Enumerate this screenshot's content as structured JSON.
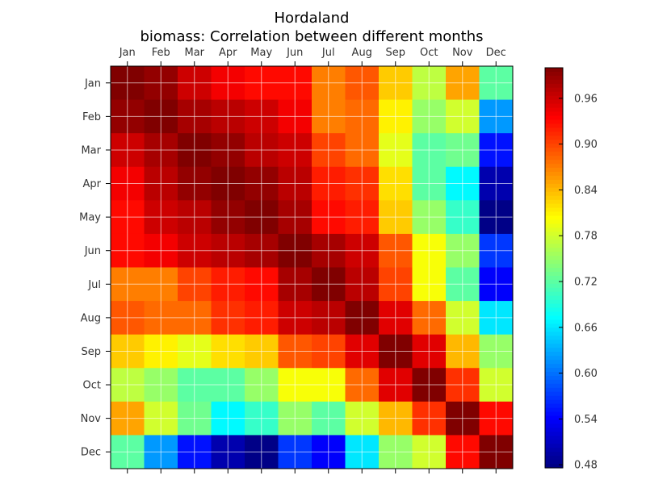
{
  "chart_data": {
    "type": "heatmap",
    "title": "Hordaland",
    "subtitle": "biomass: Correlation between different months",
    "x_categories": [
      "Jan",
      "Feb",
      "Mar",
      "Apr",
      "May",
      "Jun",
      "Jul",
      "Aug",
      "Sep",
      "Oct",
      "Nov",
      "Dec"
    ],
    "y_categories": [
      "Jan",
      "Feb",
      "Mar",
      "Apr",
      "May",
      "Jun",
      "Jul",
      "Aug",
      "Sep",
      "Oct",
      "Nov",
      "Dec"
    ],
    "values": [
      [
        1.0,
        0.99,
        0.96,
        0.94,
        0.93,
        0.93,
        0.87,
        0.89,
        0.83,
        0.77,
        0.85,
        0.72
      ],
      [
        0.99,
        1.0,
        0.98,
        0.97,
        0.96,
        0.94,
        0.87,
        0.88,
        0.81,
        0.75,
        0.78,
        0.62
      ],
      [
        0.96,
        0.98,
        1.0,
        0.99,
        0.97,
        0.96,
        0.9,
        0.88,
        0.79,
        0.72,
        0.73,
        0.55
      ],
      [
        0.94,
        0.97,
        0.99,
        1.0,
        0.99,
        0.97,
        0.92,
        0.91,
        0.82,
        0.72,
        0.67,
        0.5
      ],
      [
        0.93,
        0.96,
        0.97,
        0.99,
        1.0,
        0.98,
        0.93,
        0.92,
        0.83,
        0.75,
        0.7,
        0.48
      ],
      [
        0.93,
        0.94,
        0.96,
        0.97,
        0.98,
        1.0,
        0.98,
        0.96,
        0.89,
        0.8,
        0.75,
        0.57
      ],
      [
        0.87,
        0.87,
        0.9,
        0.92,
        0.93,
        0.98,
        1.0,
        0.97,
        0.9,
        0.8,
        0.72,
        0.54
      ],
      [
        0.89,
        0.88,
        0.88,
        0.91,
        0.92,
        0.96,
        0.97,
        1.0,
        0.95,
        0.88,
        0.78,
        0.66
      ],
      [
        0.83,
        0.81,
        0.79,
        0.82,
        0.83,
        0.89,
        0.9,
        0.95,
        1.0,
        0.95,
        0.84,
        0.75
      ],
      [
        0.77,
        0.75,
        0.72,
        0.72,
        0.75,
        0.8,
        0.8,
        0.88,
        0.95,
        1.0,
        0.91,
        0.78
      ],
      [
        0.85,
        0.78,
        0.73,
        0.67,
        0.7,
        0.75,
        0.72,
        0.78,
        0.84,
        0.91,
        1.0,
        0.93
      ],
      [
        0.72,
        0.62,
        0.55,
        0.5,
        0.48,
        0.57,
        0.54,
        0.66,
        0.75,
        0.78,
        0.93,
        1.0
      ]
    ],
    "colorbar": {
      "colormap": "jet",
      "range": [
        0.476,
        1.0
      ],
      "ticks": [
        "0.96",
        "0.90",
        "0.84",
        "0.78",
        "0.72",
        "0.66",
        "0.60",
        "0.54",
        "0.48"
      ],
      "tick_values": [
        0.96,
        0.9,
        0.84,
        0.78,
        0.72,
        0.66,
        0.6,
        0.54,
        0.48
      ]
    },
    "grid": true
  }
}
